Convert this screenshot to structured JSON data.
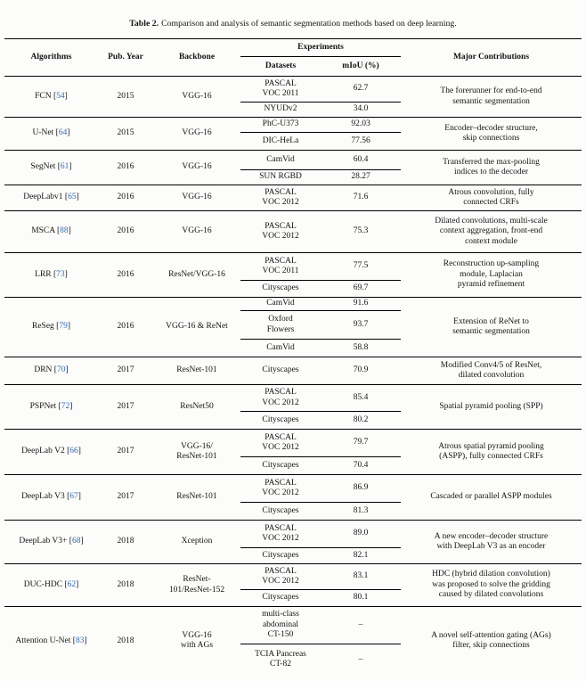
{
  "caption": {
    "label": "Table 2.",
    "text": "Comparison and analysis of semantic segmentation methods based on deep learning."
  },
  "header": {
    "algorithms": "Algorithms",
    "pub_year": "Pub. Year",
    "backbone": "Backbone",
    "experiments": "Experiments",
    "datasets": "Datasets",
    "miou": "mIoU (%)",
    "major_contributions": "Major Contributions"
  },
  "rows": [
    {
      "algorithm": "FCN",
      "ref": "54",
      "year": "2015",
      "backbone": "VGG-16",
      "experiments": [
        {
          "dataset": "PASCAL\nVOC 2011",
          "miou": "62.7"
        },
        {
          "dataset": "NYUDv2",
          "miou": "34.0"
        }
      ],
      "contribution": "The forerunner for end-to-end\nsemantic segmentation"
    },
    {
      "algorithm": "U-Net",
      "ref": "64",
      "year": "2015",
      "backbone": "VGG-16",
      "experiments": [
        {
          "dataset": "PhC-U373",
          "miou": "92.03"
        },
        {
          "dataset": "DIC-HeLa",
          "miou": "77.56"
        }
      ],
      "contribution": "Encoder–decoder structure,\nskip connections"
    },
    {
      "algorithm": "SegNet",
      "ref": "61",
      "year": "2016",
      "backbone": "VGG-16",
      "experiments": [
        {
          "dataset": "CamVid",
          "miou": "60.4"
        },
        {
          "dataset": "SUN RGBD",
          "miou": "28.27"
        }
      ],
      "contribution": "Transferred the max-pooling\nindices to the decoder"
    },
    {
      "algorithm": "DeepLabv1",
      "ref": "65",
      "year": "2016",
      "backbone": "VGG-16",
      "experiments": [
        {
          "dataset": "PASCAL\nVOC 2012",
          "miou": "71.6"
        }
      ],
      "contribution": "Atrous convolution, fully\nconnected CRFs"
    },
    {
      "algorithm": "MSCA",
      "ref": "88",
      "year": "2016",
      "backbone": "VGG-16",
      "experiments": [
        {
          "dataset": "PASCAL\nVOC 2012",
          "miou": "75.3"
        }
      ],
      "contribution": "Dilated convolutions, multi-scale\ncontext aggregation, front-end\ncontext module"
    },
    {
      "algorithm": "LRR",
      "ref": "73",
      "year": "2016",
      "backbone": "ResNet/VGG-16",
      "experiments": [
        {
          "dataset": "PASCAL\nVOC 2011",
          "miou": "77.5"
        },
        {
          "dataset": "Cityscapes",
          "miou": "69.7"
        }
      ],
      "contribution": "Reconstruction up-sampling\nmodule, Laplacian\npyramid refinement"
    },
    {
      "algorithm": "ReSeg",
      "ref": "79",
      "year": "2016",
      "backbone": "VGG-16 & ReNet",
      "experiments": [
        {
          "dataset": "CamVid",
          "miou": "91.6"
        },
        {
          "dataset": "Oxford\nFlowers",
          "miou": "93.7"
        },
        {
          "dataset": "CamVid",
          "miou": "58.8"
        }
      ],
      "contribution": "Extension of ReNet to\nsemantic segmentation"
    },
    {
      "algorithm": "DRN",
      "ref": "70",
      "year": "2017",
      "backbone": "ResNet-101",
      "experiments": [
        {
          "dataset": "Cityscapes",
          "miou": "70.9"
        }
      ],
      "contribution": "Modified Conv4/5 of ResNet,\ndilated convolution"
    },
    {
      "algorithm": "PSPNet",
      "ref": "72",
      "year": "2017",
      "backbone": "ResNet50",
      "experiments": [
        {
          "dataset": "PASCAL\nVOC 2012",
          "miou": "85.4"
        },
        {
          "dataset": "Cityscapes",
          "miou": "80.2"
        }
      ],
      "contribution": "Spatial pyramid pooling (SPP)"
    },
    {
      "algorithm": "DeepLab V2",
      "ref": "66",
      "year": "2017",
      "backbone": "VGG-16/\nResNet-101",
      "experiments": [
        {
          "dataset": "PASCAL\nVOC 2012",
          "miou": "79.7"
        },
        {
          "dataset": "Cityscapes",
          "miou": "70.4"
        }
      ],
      "contribution": "Atrous spatial pyramid pooling\n(ASPP), fully connected CRFs"
    },
    {
      "algorithm": "DeepLab V3",
      "ref": "67",
      "year": "2017",
      "backbone": "ResNet-101",
      "experiments": [
        {
          "dataset": "PASCAL\nVOC 2012",
          "miou": "86.9"
        },
        {
          "dataset": "Cityscapes",
          "miou": "81.3"
        }
      ],
      "contribution": "Cascaded or parallel ASPP modules"
    },
    {
      "algorithm": "DeepLab V3+",
      "ref": "68",
      "year": "2018",
      "backbone": "Xception",
      "experiments": [
        {
          "dataset": "PASCAL\nVOC 2012",
          "miou": "89.0"
        },
        {
          "dataset": "Cityscapes",
          "miou": "82.1"
        }
      ],
      "contribution": "A new encoder–decoder structure\nwith DeepLab V3 as an encoder"
    },
    {
      "algorithm": "DUC-HDC",
      "ref": "62",
      "year": "2018",
      "backbone": "ResNet-\n101/ResNet-152",
      "experiments": [
        {
          "dataset": "PASCAL\nVOC 2012",
          "miou": "83.1"
        },
        {
          "dataset": "Cityscapes",
          "miou": "80.1"
        }
      ],
      "contribution": "HDC (hybrid dilation convolution)\nwas proposed to solve the gridding\ncaused by dilated convolutions"
    },
    {
      "algorithm": "Attention U-Net",
      "ref": "83",
      "year": "2018",
      "backbone": "VGG-16\nwith AGs",
      "experiments": [
        {
          "dataset": "multi-class\nabdominal\nCT-150",
          "miou": "–"
        },
        {
          "dataset": "TCIA Pancreas\nCT-82",
          "miou": "–"
        }
      ],
      "contribution": "A novel self-attention gating (AGs)\nfilter, skip connections"
    }
  ],
  "colors": {
    "citation_blue": "#3468b4",
    "text": "#141414",
    "rule": "#000000",
    "background": "#fcfcfa"
  }
}
